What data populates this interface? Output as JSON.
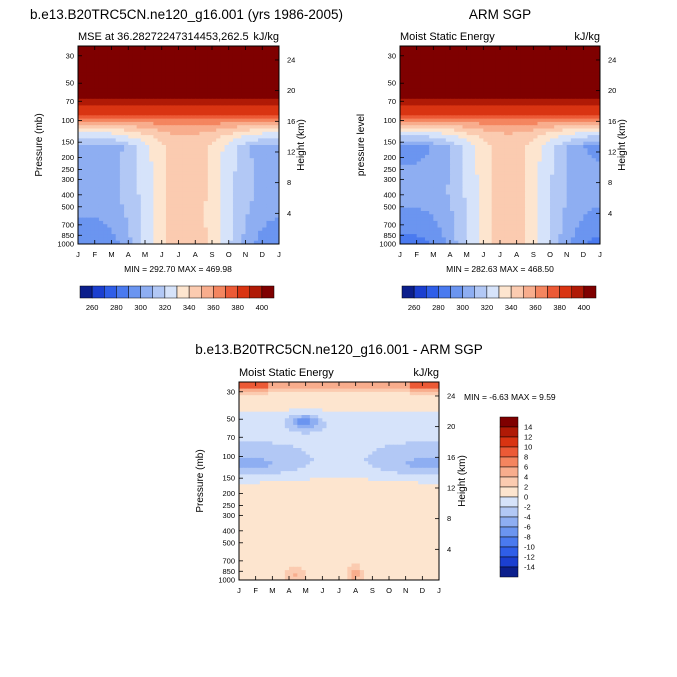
{
  "chart_data": [
    {
      "type": "heatmap",
      "id": "model",
      "title": "b.e13.B20TRC5CN.ne120_g16.001 (yrs 1986-2005)",
      "left_string": "MSE at 36.28272247314453,262.5",
      "right_string": "kJ/kg",
      "ylabel": "Pressure (mb)",
      "ylabel_right": "Height (km)",
      "months": [
        "J",
        "F",
        "M",
        "A",
        "M",
        "J",
        "J",
        "A",
        "S",
        "O",
        "N",
        "D",
        "J"
      ],
      "pressure_ticks": [
        "30",
        "50",
        "70",
        "100",
        "150",
        "200",
        "250",
        "300",
        "400",
        "500",
        "700",
        "850",
        "1000"
      ],
      "height_ticks": [
        "4",
        "8",
        "12",
        "16",
        "20",
        "24"
      ],
      "stats": "MIN = 292.70 MAX = 469.98",
      "levels": [
        260,
        270,
        280,
        290,
        300,
        310,
        320,
        330,
        340,
        350,
        360,
        370,
        380,
        390,
        400
      ],
      "summer_min": 338,
      "winter_min": 300,
      "mid_low": 312
    },
    {
      "type": "heatmap",
      "id": "obs",
      "title": "ARM SGP",
      "left_string": "Moist Static Energy",
      "right_string": "kJ/kg",
      "ylabel": "pressure level",
      "ylabel_right": "Height (km)",
      "months": [
        "J",
        "F",
        "M",
        "A",
        "M",
        "J",
        "J",
        "A",
        "S",
        "O",
        "N",
        "D",
        "J"
      ],
      "pressure_ticks": [
        "30",
        "50",
        "70",
        "100",
        "150",
        "200",
        "250",
        "300",
        "400",
        "500",
        "700",
        "850",
        "1000"
      ],
      "height_ticks": [
        "4",
        "8",
        "12",
        "16",
        "20",
        "24"
      ],
      "stats": "MIN = 282.63 MAX = 468.50",
      "levels": [
        260,
        270,
        280,
        290,
        300,
        310,
        320,
        330,
        340,
        350,
        360,
        370,
        380,
        390,
        400
      ],
      "summer_min": 336,
      "winter_min": 296,
      "mid_low": 310
    },
    {
      "type": "heatmap",
      "id": "diff",
      "title": "b.e13.B20TRC5CN.ne120_g16.001 - ARM SGP",
      "left_string": "Moist Static Energy",
      "right_string": "kJ/kg",
      "ylabel": "Pressure (mb)",
      "ylabel_right": "Height (km)",
      "months": [
        "J",
        "F",
        "M",
        "A",
        "M",
        "J",
        "J",
        "A",
        "S",
        "O",
        "N",
        "D",
        "J"
      ],
      "pressure_ticks": [
        "30",
        "50",
        "70",
        "100",
        "150",
        "200",
        "250",
        "300",
        "400",
        "500",
        "700",
        "850",
        "1000"
      ],
      "height_ticks": [
        "4",
        "8",
        "12",
        "16",
        "20",
        "24"
      ],
      "stats": "MIN =  -6.63 MAX =   9.59",
      "levels": [
        -14,
        -12,
        -10,
        -8,
        -6,
        -4,
        -2,
        0,
        2,
        4,
        6,
        8,
        10,
        12,
        14
      ]
    }
  ],
  "colorbars": {
    "absolute": {
      "orientation": "horizontal",
      "labels": [
        "260",
        "280",
        "300",
        "320",
        "340",
        "360",
        "380",
        "400"
      ],
      "colors": [
        "#0c1f8c",
        "#1b3fd0",
        "#2f5ee8",
        "#4a7aef",
        "#6b95f0",
        "#8eaef2",
        "#b2c8f5",
        "#d6e3fa",
        "#fde5cf",
        "#fbcbb0",
        "#f8ad8d",
        "#f4855f",
        "#ec5a36",
        "#d93412",
        "#b01a06",
        "#7f0000"
      ]
    },
    "difference": {
      "orientation": "vertical",
      "labels": [
        "14",
        "12",
        "10",
        "8",
        "6",
        "4",
        "2",
        "0",
        "-2",
        "-4",
        "-6",
        "-8",
        "-10",
        "-12",
        "-14"
      ],
      "colors": [
        "#7f0000",
        "#b01a06",
        "#d93412",
        "#ec5a36",
        "#f4855f",
        "#f8ad8d",
        "#fbcbb0",
        "#fde5cf",
        "#d6e3fa",
        "#b2c8f5",
        "#8eaef2",
        "#6b95f0",
        "#4a7aef",
        "#2f5ee8",
        "#1b3fd0",
        "#0c1f8c"
      ]
    }
  }
}
